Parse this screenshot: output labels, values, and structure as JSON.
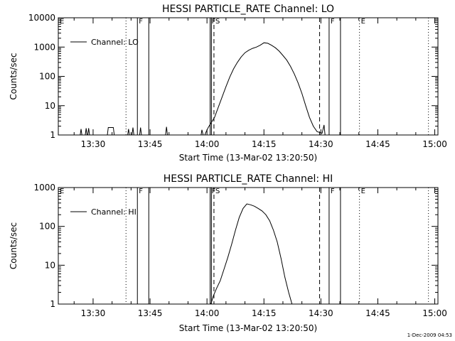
{
  "chart_data": [
    {
      "type": "line",
      "title": "HESSI PARTICLE_RATE Channel: LO",
      "xlabel": "Start Time (13-Mar-02 13:20:50)",
      "ylabel": "Counts/sec",
      "y_scale": "log",
      "ylim": [
        1,
        10000
      ],
      "xlim": [
        "13:20:50",
        "15:00:50"
      ],
      "x_ticks": [
        "13:30",
        "13:45",
        "14:00",
        "14:15",
        "14:30",
        "14:45",
        "15:00"
      ],
      "y_ticks": [
        "1",
        "10",
        "100",
        "1000",
        "10000"
      ],
      "legend": {
        "position": "top-left",
        "entries": [
          "Channel: LO"
        ]
      },
      "grid": false,
      "series": [
        {
          "name": "Channel: LO",
          "points": [
            [
              "13:20:50",
              0.8
            ],
            [
              "13:26:30",
              0.8
            ],
            [
              "13:26:50",
              1.6
            ],
            [
              "13:27:10",
              0.8
            ],
            [
              "13:27:50",
              0.8
            ],
            [
              "13:28:10",
              1.7
            ],
            [
              "13:28:30",
              0.8
            ],
            [
              "13:28:50",
              1.7
            ],
            [
              "13:29:10",
              0.8
            ],
            [
              "13:33:40",
              0.8
            ],
            [
              "13:34:00",
              1.8
            ],
            [
              "13:35:20",
              1.8
            ],
            [
              "13:35:40",
              0.8
            ],
            [
              "13:39:00",
              0.8
            ],
            [
              "13:39:20",
              1.6
            ],
            [
              "13:39:40",
              0.8
            ],
            [
              "13:40:10",
              0.8
            ],
            [
              "13:40:30",
              1.8
            ],
            [
              "13:40:50",
              0.8
            ],
            [
              "13:42:10",
              0.8
            ],
            [
              "13:42:30",
              1.8
            ],
            [
              "13:42:50",
              0.8
            ],
            [
              "13:49:00",
              0.8
            ],
            [
              "13:49:20",
              1.9
            ],
            [
              "13:49:40",
              0.8
            ],
            [
              "13:58:20",
              0.8
            ],
            [
              "13:58:40",
              1.5
            ],
            [
              "13:59:10",
              0.8
            ],
            [
              "13:59:40",
              1.2
            ],
            [
              "14:00:20",
              1.8
            ],
            [
              "14:01:00",
              2.5
            ],
            [
              "14:02:00",
              4
            ],
            [
              "14:03:00",
              9
            ],
            [
              "14:04:00",
              20
            ],
            [
              "14:05:00",
              45
            ],
            [
              "14:06:00",
              95
            ],
            [
              "14:07:00",
              180
            ],
            [
              "14:08:00",
              300
            ],
            [
              "14:09:00",
              460
            ],
            [
              "14:10:00",
              640
            ],
            [
              "14:11:00",
              780
            ],
            [
              "14:12:00",
              900
            ],
            [
              "14:13:00",
              1000
            ],
            [
              "14:14:00",
              1150
            ],
            [
              "14:15:00",
              1400
            ],
            [
              "14:16:00",
              1350
            ],
            [
              "14:17:00",
              1150
            ],
            [
              "14:18:00",
              950
            ],
            [
              "14:19:00",
              730
            ],
            [
              "14:20:00",
              520
            ],
            [
              "14:21:00",
              360
            ],
            [
              "14:22:00",
              220
            ],
            [
              "14:23:00",
              120
            ],
            [
              "14:24:00",
              60
            ],
            [
              "14:25:00",
              26
            ],
            [
              "14:26:00",
              10
            ],
            [
              "14:27:00",
              4
            ],
            [
              "14:28:00",
              2
            ],
            [
              "14:29:00",
              1.3
            ],
            [
              "14:30:20",
              1.15
            ],
            [
              "14:30:50",
              2.2
            ],
            [
              "14:31:10",
              0.8
            ]
          ]
        }
      ],
      "markers": [
        {
          "label": "E",
          "style": "dotted",
          "x": "13:20:50"
        },
        {
          "label": "",
          "style": "dotted",
          "x": "13:38:40"
        },
        {
          "label": "F",
          "style": "solid",
          "x": "13:41:40"
        },
        {
          "label": "",
          "style": "solid",
          "x": "13:44:40"
        },
        {
          "label": "F",
          "style": "solid",
          "x": "14:00:50"
        },
        {
          "label": "",
          "style": "solid",
          "x": "14:01:10"
        },
        {
          "label": "S",
          "style": "dashed",
          "x": "14:01:50"
        },
        {
          "label": "",
          "style": "dashed",
          "x": "14:29:40"
        },
        {
          "label": "F",
          "style": "solid",
          "x": "14:32:10"
        },
        {
          "label": "",
          "style": "solid",
          "x": "14:35:10"
        },
        {
          "label": "E",
          "style": "dotted",
          "x": "14:40:10"
        },
        {
          "label": "",
          "style": "dotted",
          "x": "14:58:20"
        }
      ]
    },
    {
      "type": "line",
      "title": "HESSI PARTICLE_RATE Channel: HI",
      "xlabel": "Start Time (13-Mar-02 13:20:50)",
      "ylabel": "Counts/sec",
      "y_scale": "log",
      "ylim": [
        1,
        1000
      ],
      "xlim": [
        "13:20:50",
        "15:00:50"
      ],
      "x_ticks": [
        "13:30",
        "13:45",
        "14:00",
        "14:15",
        "14:30",
        "14:45",
        "15:00"
      ],
      "y_ticks": [
        "1",
        "10",
        "100",
        "1000"
      ],
      "legend": {
        "position": "top-left",
        "entries": [
          "Channel: HI"
        ]
      },
      "grid": false,
      "series": [
        {
          "name": "Channel: HI",
          "points": [
            [
              "14:00:30",
              0.8
            ],
            [
              "14:01:10",
              1.1
            ],
            [
              "14:01:40",
              1.6
            ],
            [
              "14:02:30",
              2.5
            ],
            [
              "14:03:30",
              4
            ],
            [
              "14:04:30",
              8
            ],
            [
              "14:05:30",
              16
            ],
            [
              "14:06:30",
              35
            ],
            [
              "14:07:30",
              80
            ],
            [
              "14:08:30",
              170
            ],
            [
              "14:09:30",
              290
            ],
            [
              "14:10:30",
              380
            ],
            [
              "14:11:30",
              360
            ],
            [
              "14:12:30",
              330
            ],
            [
              "14:13:30",
              290
            ],
            [
              "14:14:30",
              250
            ],
            [
              "14:15:30",
              200
            ],
            [
              "14:16:30",
              140
            ],
            [
              "14:17:30",
              80
            ],
            [
              "14:18:30",
              40
            ],
            [
              "14:19:30",
              15
            ],
            [
              "14:20:30",
              5
            ],
            [
              "14:21:30",
              2
            ],
            [
              "14:22:10",
              1.2
            ],
            [
              "14:22:40",
              0.8
            ]
          ]
        }
      ],
      "markers": [
        {
          "label": "E",
          "style": "dotted",
          "x": "13:20:50"
        },
        {
          "label": "",
          "style": "dotted",
          "x": "13:38:40"
        },
        {
          "label": "F",
          "style": "solid",
          "x": "13:41:40"
        },
        {
          "label": "",
          "style": "solid",
          "x": "13:44:40"
        },
        {
          "label": "F",
          "style": "solid",
          "x": "14:00:50"
        },
        {
          "label": "",
          "style": "solid",
          "x": "14:01:10"
        },
        {
          "label": "S",
          "style": "dashed",
          "x": "14:01:50"
        },
        {
          "label": "",
          "style": "dashed",
          "x": "14:29:40"
        },
        {
          "label": "F",
          "style": "solid",
          "x": "14:32:10"
        },
        {
          "label": "",
          "style": "solid",
          "x": "14:35:10"
        },
        {
          "label": "E",
          "style": "dotted",
          "x": "14:40:10"
        },
        {
          "label": "",
          "style": "dotted",
          "x": "14:58:20"
        }
      ]
    }
  ],
  "footer": {
    "timestamp": "1-Dec-2009 04:53"
  }
}
